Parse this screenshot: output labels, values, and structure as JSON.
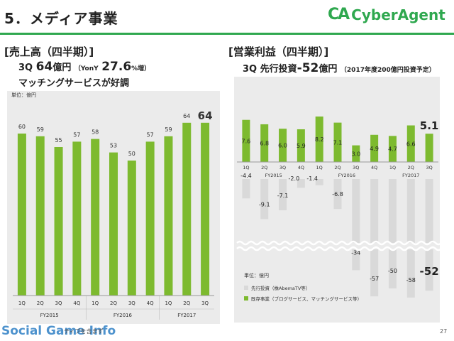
{
  "header": {
    "title": "5．メディア事業",
    "brand_mark": "CA",
    "brand_name": "CyberAgent"
  },
  "left": {
    "section_title": "[売上高（四半期）]",
    "line1_q": "3Q",
    "line1_value": "64",
    "line1_unit": "億円",
    "line1_yoy_label": "（YonY",
    "line1_yoy_value": "27.6",
    "line1_yoy_suffix": "%増）",
    "line2": "マッチングサービスが好調",
    "unit": "単位：億円"
  },
  "right": {
    "section_title": "[営業利益（四半期）]",
    "line1_q": "3Q",
    "line1_text": "先行投資",
    "line1_value": "-52",
    "line1_unit": "億円",
    "line1_note": "（2017年度200億円投資予定）",
    "unit": "単位：億円",
    "legend_gray": "先行投資（株AbemaTV等）",
    "legend_green": "既存事業（ブログサービス、マッチングサービス等）"
  },
  "footer": {
    "watermark": "Social Game Info",
    "note": "ティブを含まず",
    "page": "27"
  },
  "colors": {
    "green": "#7dba2f",
    "gray": "#d9d9d9",
    "panel": "#ebebeb",
    "brand": "#2fa84f"
  },
  "chart_data": [
    {
      "type": "bar",
      "title": "売上高（四半期）",
      "ylabel": "単位：億円",
      "categories": [
        "1Q",
        "2Q",
        "3Q",
        "4Q",
        "1Q",
        "2Q",
        "3Q",
        "4Q",
        "1Q",
        "2Q",
        "3Q"
      ],
      "groups": [
        {
          "label": "FY2015",
          "span": 4
        },
        {
          "label": "FY2016",
          "span": 4
        },
        {
          "label": "FY2017",
          "span": 3
        }
      ],
      "series": [
        {
          "values": [
            60,
            59,
            55,
            57,
            58,
            53,
            50,
            57,
            59,
            64,
            64
          ]
        }
      ],
      "value_labels": [
        "60",
        "59",
        "55",
        "57",
        "58",
        "53",
        "50",
        "57",
        "59",
        "64",
        "64"
      ],
      "ylim": [
        0,
        70
      ]
    },
    {
      "type": "bar",
      "title": "営業利益（四半期）",
      "ylabel": "単位：億円",
      "categories": [
        "1Q",
        "2Q",
        "3Q",
        "4Q",
        "1Q",
        "2Q",
        "3Q",
        "4Q",
        "1Q",
        "2Q",
        "3Q"
      ],
      "groups": [
        {
          "label": "FY2015",
          "span": 4
        },
        {
          "label": "FY2016",
          "span": 4
        },
        {
          "label": "FY2017",
          "span": 3
        }
      ],
      "series": [
        {
          "name": "既存事業（ブログサービス、マッチングサービス等）",
          "values": [
            7.6,
            6.8,
            6.0,
            5.9,
            8.2,
            7.1,
            3.0,
            4.9,
            4.7,
            6.6,
            5.1
          ]
        },
        {
          "name": "先行投資（株AbemaTV等）",
          "values": [
            -4.4,
            -9.1,
            -7.1,
            -2.0,
            -1.4,
            -6.8,
            -34,
            -57,
            -50,
            -58,
            -52
          ]
        }
      ],
      "positive_labels": [
        "7.6",
        "6.8",
        "6.0",
        "5.9",
        "8.2",
        "7.1",
        "3.0",
        "4.9",
        "4.7",
        "6.6",
        "5.1"
      ],
      "negative_labels": [
        "-4.4",
        "-9.1",
        "-7.1",
        "-2.0",
        "-1.4",
        "-6.8",
        "-34",
        "-57",
        "-50",
        "-58",
        "-52"
      ],
      "axis_break": true
    }
  ]
}
